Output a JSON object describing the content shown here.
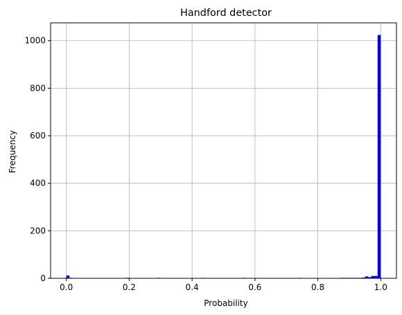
{
  "chart_data": {
    "type": "bar",
    "title": "Handford detector",
    "xlabel": "Probability",
    "ylabel": "Frequency",
    "xlim": [
      -0.05,
      1.05
    ],
    "ylim": [
      0,
      1075
    ],
    "grid": true,
    "bar_color": "#0000ff",
    "bin_width": 0.01,
    "x_ticks": [
      {
        "value": 0.0,
        "label": "0.0"
      },
      {
        "value": 0.2,
        "label": "0.2"
      },
      {
        "value": 0.4,
        "label": "0.4"
      },
      {
        "value": 0.6,
        "label": "0.6"
      },
      {
        "value": 0.8,
        "label": "0.8"
      },
      {
        "value": 1.0,
        "label": "1.0"
      }
    ],
    "y_ticks": [
      {
        "value": 0,
        "label": "0"
      },
      {
        "value": 200,
        "label": "200"
      },
      {
        "value": 400,
        "label": "400"
      },
      {
        "value": 600,
        "label": "600"
      },
      {
        "value": 800,
        "label": "800"
      },
      {
        "value": 1000,
        "label": "1000"
      }
    ],
    "bins": [
      {
        "x": 0.0,
        "value": 12
      },
      {
        "x": 0.01,
        "value": 2
      },
      {
        "x": 0.19,
        "value": 2
      },
      {
        "x": 0.29,
        "value": 2
      },
      {
        "x": 0.43,
        "value": 2
      },
      {
        "x": 0.56,
        "value": 2
      },
      {
        "x": 0.74,
        "value": 2
      },
      {
        "x": 0.81,
        "value": 1
      },
      {
        "x": 0.83,
        "value": 1
      },
      {
        "x": 0.87,
        "value": 2
      },
      {
        "x": 0.88,
        "value": 2
      },
      {
        "x": 0.89,
        "value": 2
      },
      {
        "x": 0.9,
        "value": 2
      },
      {
        "x": 0.91,
        "value": 2
      },
      {
        "x": 0.92,
        "value": 2
      },
      {
        "x": 0.93,
        "value": 2
      },
      {
        "x": 0.94,
        "value": 3
      },
      {
        "x": 0.95,
        "value": 8
      },
      {
        "x": 0.96,
        "value": 5
      },
      {
        "x": 0.97,
        "value": 10
      },
      {
        "x": 0.98,
        "value": 10
      },
      {
        "x": 0.99,
        "value": 1024
      }
    ]
  }
}
